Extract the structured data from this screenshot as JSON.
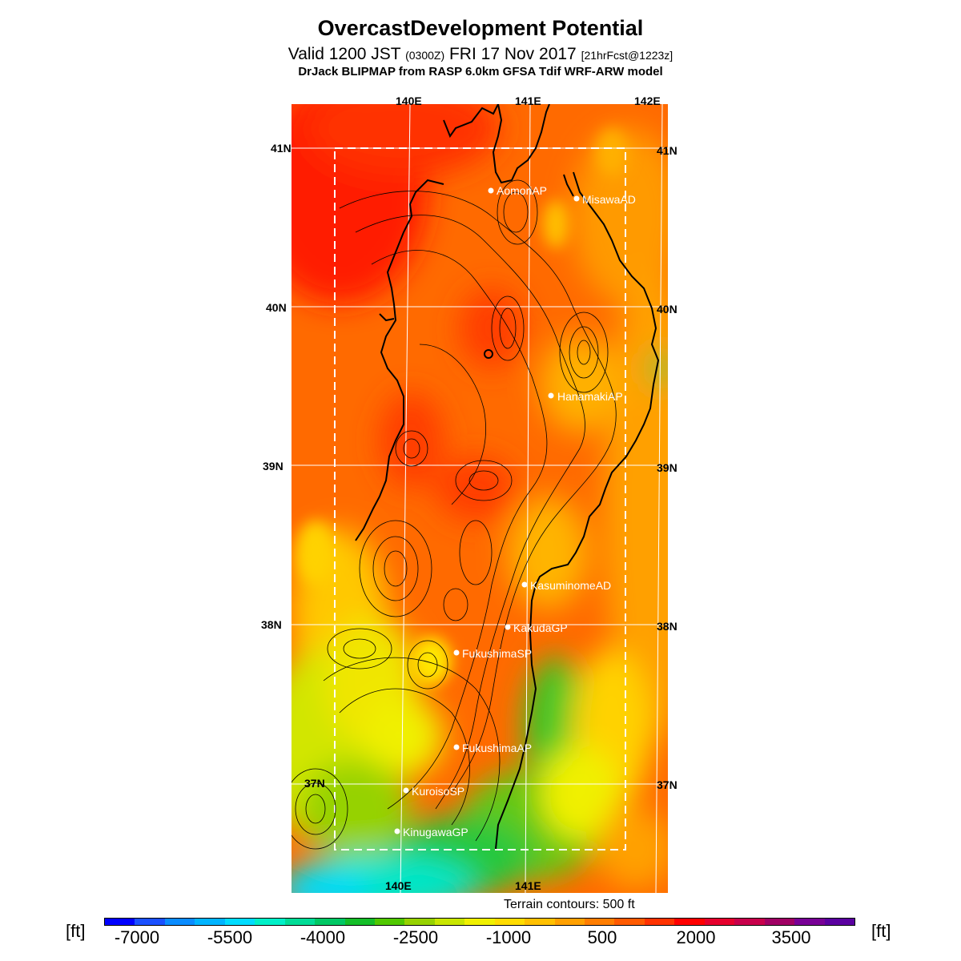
{
  "header": {
    "title": "OvercastDevelopment Potential",
    "subtitle_main": "Valid 1200 JST",
    "subtitle_utc": "(0300Z)",
    "subtitle_date": "FRI 17 Nov 2017",
    "subtitle_fcst": "[21hrFcst@1223z]",
    "model": "DrJack BLIPMAP from RASP 6.0km GFSA Tdif WRF-ARW model"
  },
  "axes": {
    "top_lon": [
      "140E",
      "141E",
      "142E"
    ],
    "bottom_lon": [
      "140E",
      "141E"
    ],
    "left_lat": [
      "41N",
      "40N",
      "39N",
      "38N",
      "37N"
    ],
    "right_lat": [
      "41N",
      "40N",
      "39N",
      "38N",
      "37N"
    ]
  },
  "stations": [
    {
      "name": "AomoriAP"
    },
    {
      "name": "MisawaAD"
    },
    {
      "name": "HanamakiAP"
    },
    {
      "name": "KasuminomeAD"
    },
    {
      "name": "KakudaGP"
    },
    {
      "name": "FukushimaSP"
    },
    {
      "name": "FukushimaAP"
    },
    {
      "name": "KuroisoSP"
    },
    {
      "name": "KinugawaGP"
    }
  ],
  "terrain_note": "Terrain contours: 500 ft",
  "colorbar": {
    "unit": "[ft]",
    "labels": [
      "-7000",
      "-5500",
      "-4000",
      "-2500",
      "-1000",
      "500",
      "2000",
      "3500"
    ],
    "colors": [
      "#0000ff",
      "#1a50ff",
      "#0a8cff",
      "#00b4ff",
      "#00dcff",
      "#00f0c8",
      "#00dc96",
      "#00c864",
      "#14be28",
      "#50c800",
      "#96d200",
      "#c8e600",
      "#f0f000",
      "#ffdc00",
      "#ffc000",
      "#ffa000",
      "#ff7d00",
      "#ff5a00",
      "#ff3200",
      "#ff0000",
      "#e6002d",
      "#c8004b",
      "#a00064",
      "#780096",
      "#5a00a0"
    ]
  }
}
